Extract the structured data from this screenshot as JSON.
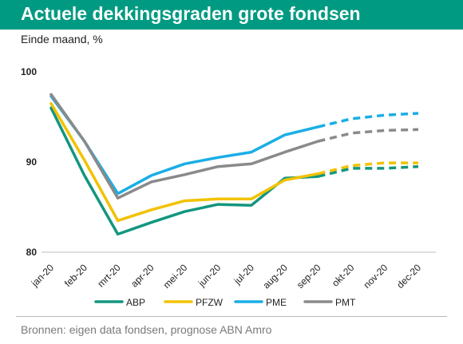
{
  "header": {
    "title": "Actuele dekkingsgraden grote fondsen",
    "subtitle": "Einde maand, %"
  },
  "footer": {
    "source": "Bronnen: eigen data fondsen, prognose ABN Amro"
  },
  "colors": {
    "title_bg": "#009a82",
    "ABP": "#13967f",
    "PFZW": "#f2c200",
    "PME": "#1aaee6",
    "PMT": "#8a8a8a"
  },
  "chart_data": {
    "type": "line",
    "title": "Actuele dekkingsgraden grote fondsen",
    "subtitle": "Einde maand, %",
    "categories": [
      "jan-20",
      "feb-20",
      "mrt-20",
      "apr-20",
      "mei-20",
      "jun-20",
      "jul-20",
      "aug-20",
      "sep-20",
      "okt-20",
      "nov-20",
      "dec-20"
    ],
    "ylim": [
      80,
      100
    ],
    "yticks": [
      80,
      90,
      100
    ],
    "grid": false,
    "legend_position": "bottom",
    "forecast_from_index": 8,
    "series": [
      {
        "name": "ABP",
        "values": [
          96.0,
          88.5,
          82.0,
          83.3,
          84.5,
          85.3,
          85.2,
          88.2,
          88.4,
          89.3,
          89.3,
          89.5
        ]
      },
      {
        "name": "PFZW",
        "values": [
          96.5,
          90.2,
          83.5,
          84.7,
          85.7,
          85.9,
          85.9,
          88.0,
          88.7,
          89.6,
          89.9,
          89.9
        ]
      },
      {
        "name": "PME",
        "values": [
          97.3,
          92.3,
          86.5,
          88.5,
          89.8,
          90.5,
          91.1,
          93.0,
          93.9,
          94.8,
          95.2,
          95.4
        ]
      },
      {
        "name": "PMT",
        "values": [
          97.5,
          92.3,
          86.0,
          87.8,
          88.6,
          89.5,
          89.8,
          91.1,
          92.3,
          93.2,
          93.5,
          93.6
        ]
      }
    ]
  }
}
